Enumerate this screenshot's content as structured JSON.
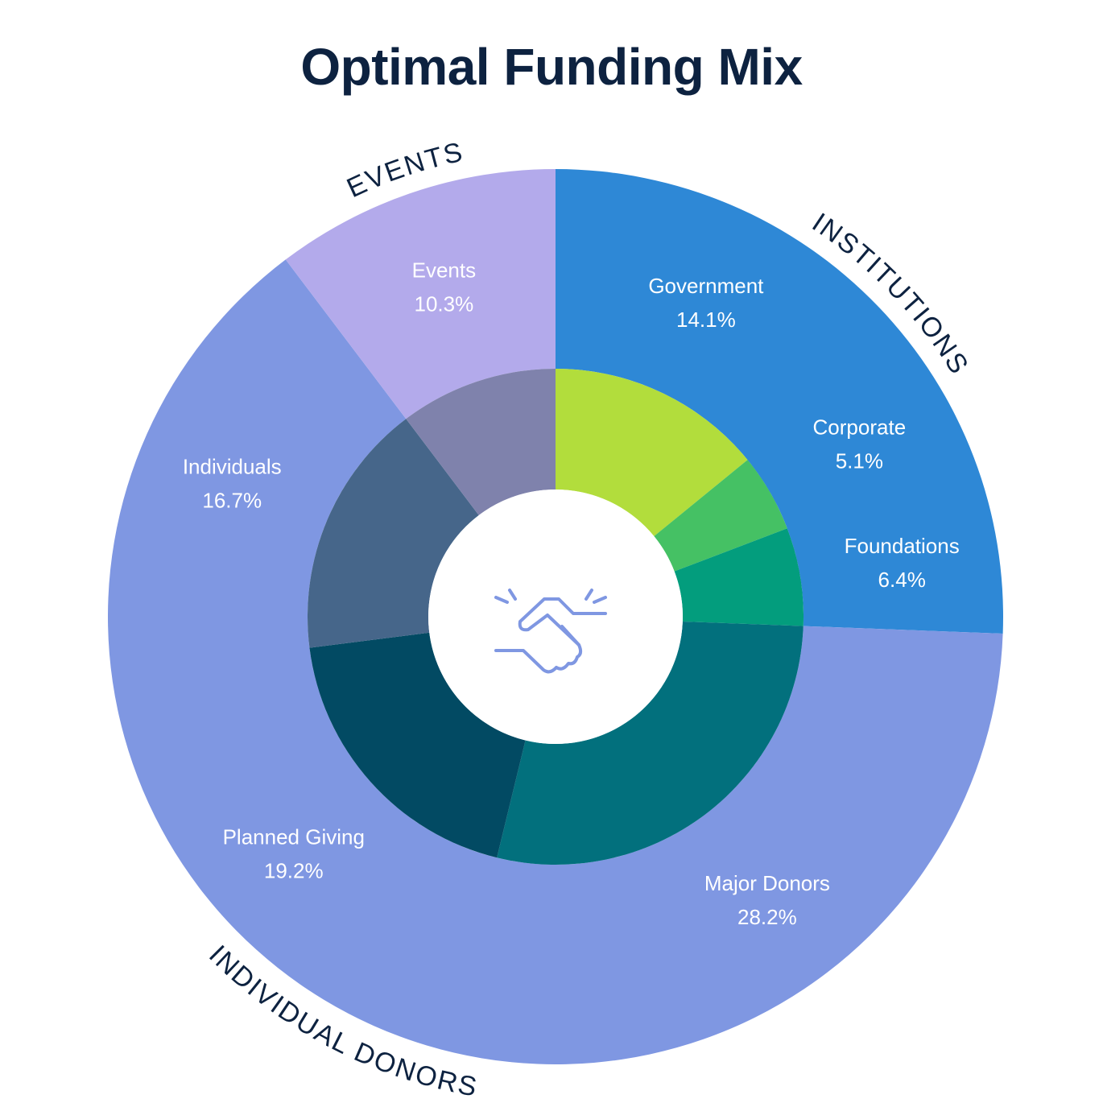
{
  "chart_data": {
    "type": "pie",
    "title": "Optimal Funding Mix",
    "groups": [
      {
        "name": "INSTITUTIONS",
        "color": "#2e88d6",
        "value": 25.6
      },
      {
        "name": "INDIVIDUAL DONORS",
        "color": "#7f97e2",
        "value": 64.1
      },
      {
        "name": "EVENTS",
        "color": "#b3aaeb",
        "value": 10.3
      }
    ],
    "slices": [
      {
        "name": "Government",
        "value": 14.1,
        "label": "14.1%",
        "group": "INSTITUTIONS",
        "color": "#b2dd3c"
      },
      {
        "name": "Corporate",
        "value": 5.1,
        "label": "5.1%",
        "group": "INSTITUTIONS",
        "color": "#45c164"
      },
      {
        "name": "Foundations",
        "value": 6.4,
        "label": "6.4%",
        "group": "INSTITUTIONS",
        "color": "#039d7d"
      },
      {
        "name": "Major Donors",
        "value": 28.2,
        "label": "28.2%",
        "group": "INDIVIDUAL DONORS",
        "color": "#02707d"
      },
      {
        "name": "Planned Giving",
        "value": 19.2,
        "label": "19.2%",
        "group": "INDIVIDUAL DONORS",
        "color": "#024a63"
      },
      {
        "name": "Individuals",
        "value": 16.7,
        "label": "16.7%",
        "group": "INDIVIDUAL DONORS",
        "color": "#46668a"
      },
      {
        "name": "Events",
        "value": 10.3,
        "label": "10.3%",
        "group": "EVENTS",
        "color": "#7f82ac"
      }
    ],
    "center_icon": "handshake-icon",
    "icon_color": "#7f97e2"
  }
}
